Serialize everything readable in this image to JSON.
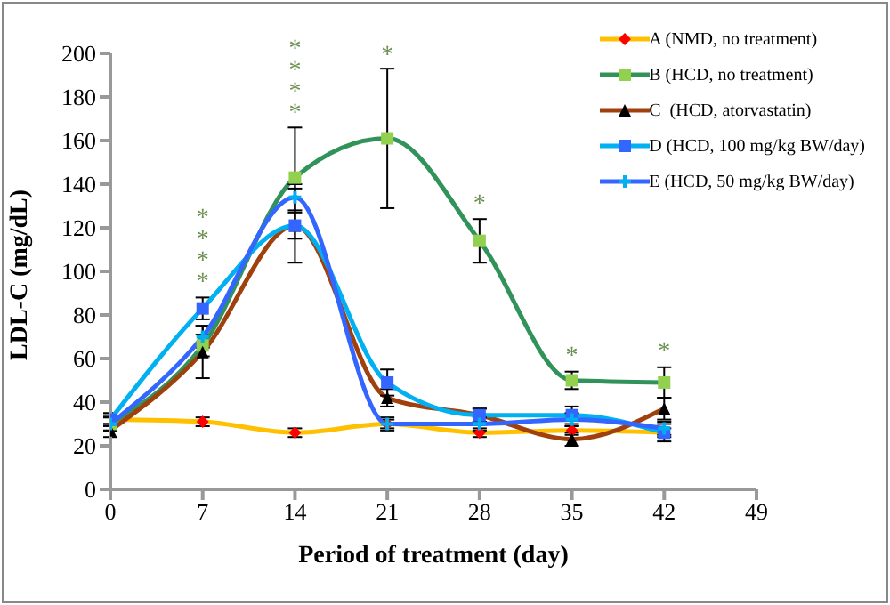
{
  "chart_data": {
    "type": "line",
    "xlabel": "Period of treatment (day)",
    "ylabel": "LDL-C (mg/dL)",
    "x": [
      0,
      7,
      14,
      21,
      28,
      35,
      42
    ],
    "xlim": [
      0,
      49
    ],
    "xticks": [
      0,
      7,
      14,
      21,
      28,
      35,
      42,
      49
    ],
    "ylim": [
      0,
      200
    ],
    "yticks": [
      0,
      20,
      40,
      60,
      80,
      100,
      120,
      140,
      160,
      180,
      200
    ],
    "grid": false,
    "legend": "top right",
    "line_style": "solid",
    "series": [
      {
        "name": "A (NMD, no treatment)",
        "color": "#ffc000",
        "colors": [
          "#ff0000",
          "#ff0000",
          "#ff0000",
          "#ff0000",
          "#ff0000",
          "#ff0000",
          "#ff0000"
        ],
        "marker": "diamond",
        "values": [
          32,
          31,
          26,
          30,
          26,
          27,
          26
        ],
        "errors": [
          2,
          2,
          2,
          2,
          2,
          2,
          2
        ]
      },
      {
        "name": "B (HCD, no treatment)",
        "color": "#31935a",
        "colors": [
          "#92d050",
          "#92d050",
          "#92d050",
          "#92d050",
          "#92d050",
          "#92d050",
          "#92d050"
        ],
        "marker": "square",
        "values": [
          30,
          66,
          143,
          161,
          114,
          50,
          49
        ],
        "errors": [
          3,
          5,
          23,
          32,
          10,
          4,
          7
        ]
      },
      {
        "name": "C  (HCD, atorvastatin)",
        "color": "#a0410d",
        "colors": [
          "#000000",
          "#000000",
          "#000000",
          "#000000",
          "#000000",
          "#000000",
          "#000000"
        ],
        "marker": "triangle",
        "values": [
          27,
          63,
          121,
          42,
          34,
          23,
          37
        ],
        "errors": [
          3,
          12,
          17,
          4,
          3,
          3,
          5
        ]
      },
      {
        "name": "D (HCD, 100 mg/kg BW/day)",
        "color": "#00b0f0",
        "colors": [
          "#3366ff",
          "#3366ff",
          "#3366ff",
          "#3366ff",
          "#3366ff",
          "#3366ff",
          "#3366ff"
        ],
        "marker": "square",
        "values": [
          32,
          83,
          121,
          49,
          34,
          34,
          26
        ],
        "errors": [
          3,
          5,
          6,
          6,
          3,
          4,
          4
        ]
      },
      {
        "name": "E (HCD, 50 mg/kg BW/day)",
        "color": "#3366ff",
        "colors": [
          "#00b0f0",
          "#00b0f0",
          "#00b0f0",
          "#00b0f0",
          "#00b0f0",
          "#00b0f0",
          "#00b0f0"
        ],
        "marker": "cross",
        "values": [
          30,
          70,
          134,
          30,
          30,
          32,
          28
        ],
        "errors": [
          3,
          5,
          6,
          3,
          3,
          3,
          3
        ]
      }
    ],
    "annotations": [
      {
        "text": "*",
        "x": 7,
        "y": 83
      },
      {
        "text": "*",
        "x": 7,
        "y": 83
      },
      {
        "text": "*",
        "x": 7,
        "y": 83
      },
      "*",
      {
        "text": "*",
        "x": 14,
        "y": 143
      },
      {
        "text": "*",
        "x": 14,
        "y": 143
      },
      "*",
      "*",
      {
        "text": "*",
        "x": 21,
        "y": 161
      },
      {
        "text": "*",
        "x": 28,
        "y": 114
      },
      {
        "text": "*",
        "x": 35,
        "y": 50
      },
      {
        "text": "*",
        "x": 42,
        "y": 49
      }
    ]
  }
}
